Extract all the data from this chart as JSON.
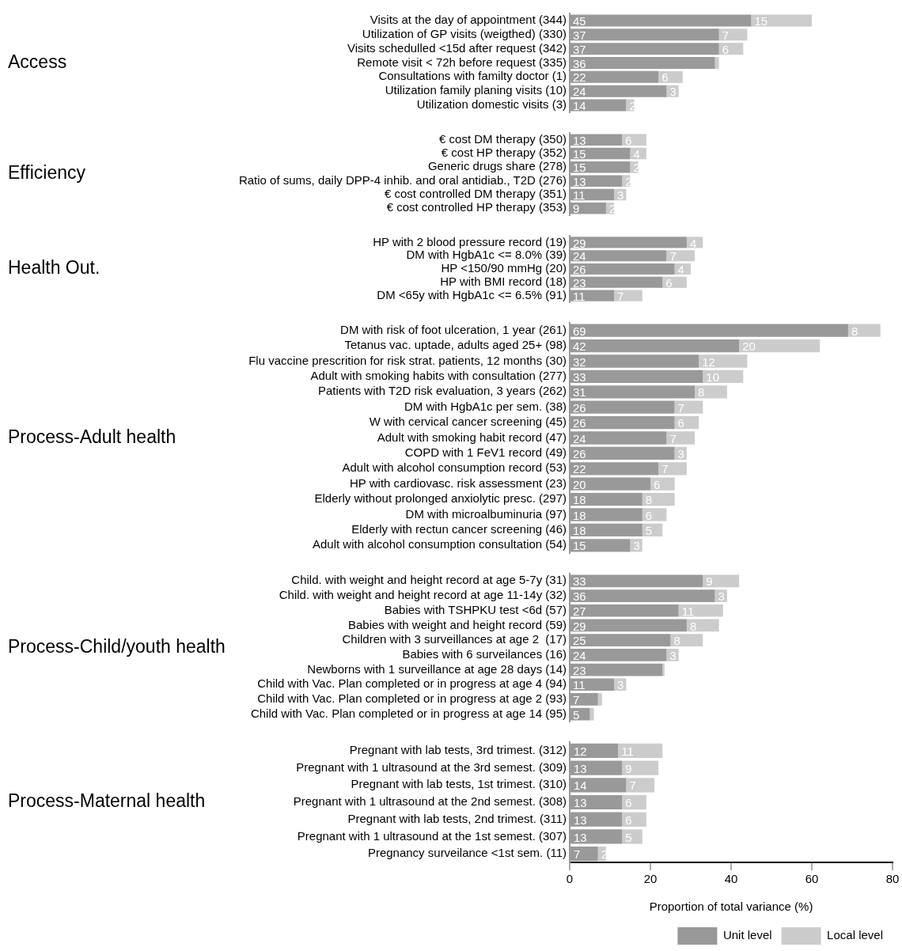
{
  "chart_data": [
    {
      "type": "bar",
      "orientation": "horizontal",
      "stacked": true,
      "ylabel": "Access",
      "xlim": [
        0,
        80
      ],
      "xticks": [
        0,
        20,
        40,
        60,
        80
      ],
      "tick_labels": "y",
      "grid": false,
      "categories": [
        "Visits at the day of appointment (344)",
        "Utilization of GP visits (weigthed) (330)",
        "Visits schedulled <15d after request (342)",
        "Remote visit < 72h before request (335)",
        "Consultations with familty doctor (1)",
        "Utilization family planing visits (10)",
        "Utilization domestic visits (3)"
      ],
      "series": [
        {
          "color": "#999999",
          "values": [
            45,
            37,
            37,
            36,
            22,
            24,
            14
          ],
          "value_labels": [
            "45",
            "37",
            "37",
            "36",
            "22",
            "24",
            "14"
          ]
        },
        {
          "color": "#cccccc",
          "values": [
            15,
            7,
            6,
            1,
            6,
            3,
            2
          ],
          "value_labels": [
            "15",
            "7",
            "6",
            null,
            "6",
            "3",
            "2"
          ]
        }
      ]
    },
    {
      "type": "bar",
      "orientation": "horizontal",
      "stacked": true,
      "ylabel": "Efficiency",
      "xlim": [
        0,
        80
      ],
      "xticks": [
        0,
        20,
        40,
        60,
        80
      ],
      "tick_labels": "y",
      "grid": false,
      "categories": [
        "€ cost DM therapy (350)",
        "€ cost HP therapy (352)",
        "Generic drugs share (278)",
        "Ratio of sums, daily DPP-4 inhib. and oral antidiab., T2D (276)",
        "€ cost controlled DM therapy (351)",
        "€ cost controlled HP therapy (353)"
      ],
      "series": [
        {
          "color": "#999999",
          "values": [
            13,
            15,
            15,
            13,
            11,
            9
          ],
          "value_labels": [
            "13",
            "15",
            "15",
            "13",
            "11",
            "9"
          ]
        },
        {
          "color": "#cccccc",
          "values": [
            6,
            4,
            2,
            2,
            3,
            2
          ],
          "value_labels": [
            "6",
            "4",
            "2",
            "2",
            "3",
            "2"
          ]
        }
      ]
    },
    {
      "type": "bar",
      "orientation": "horizontal",
      "stacked": true,
      "ylabel": "Health Out.",
      "xlim": [
        0,
        80
      ],
      "xticks": [
        0,
        20,
        40,
        60,
        80
      ],
      "tick_labels": "y",
      "grid": false,
      "categories": [
        "HP with 2 blood pressure record (19)",
        "DM with HgbA1c <= 8.0% (39)",
        "HP <150/90 mmHg (20)",
        "HP with BMI record (18)",
        "DM <65y with HgbA1c <= 6.5% (91)"
      ],
      "series": [
        {
          "color": "#999999",
          "values": [
            29,
            24,
            26,
            23,
            11
          ],
          "value_labels": [
            "29",
            "24",
            "26",
            "23",
            "11"
          ]
        },
        {
          "color": "#cccccc",
          "values": [
            4,
            7,
            4,
            6,
            7
          ],
          "value_labels": [
            "4",
            "7",
            "4",
            "6",
            "7"
          ]
        }
      ]
    },
    {
      "type": "bar",
      "orientation": "horizontal",
      "stacked": true,
      "ylabel": "Process-Adult health",
      "xlim": [
        0,
        80
      ],
      "xticks": [
        0,
        20,
        40,
        60,
        80
      ],
      "tick_labels": "y",
      "grid": false,
      "categories": [
        "DM with risk of foot ulceration, 1 year (261)",
        "Tetanus vac. uptade, adults aged 25+ (98)",
        "Flu vaccine prescrition for risk strat. patients, 12 months (30)",
        "Adult with smoking habits with consultation (277)",
        "Patients with T2D risk evaluation, 3 years (262)",
        "DM with HgbA1c per sem. (38)",
        "W with cervical cancer screening (45)",
        "Adult with smoking habit record (47)",
        "COPD with 1 FeV1 record (49)",
        "Adult with alcohol consumption record (53)",
        "HP with cardiovasc. risk assessment (23)",
        "Elderly without prolonged anxiolytic presc. (297)",
        "DM with microalbuminuria (97)",
        "Elderly with rectun cancer screening (46)",
        "Adult with alcohol consumption consultation (54)"
      ],
      "series": [
        {
          "color": "#999999",
          "values": [
            69,
            42,
            32,
            33,
            31,
            26,
            26,
            24,
            26,
            22,
            20,
            18,
            18,
            18,
            15
          ],
          "value_labels": [
            "69",
            "42",
            "32",
            "33",
            "31",
            "26",
            "26",
            "24",
            "26",
            "22",
            "20",
            "18",
            "18",
            "18",
            "15"
          ]
        },
        {
          "color": "#cccccc",
          "values": [
            8,
            20,
            12,
            10,
            8,
            7,
            6,
            7,
            3,
            7,
            6,
            8,
            6,
            5,
            3
          ],
          "value_labels": [
            "8",
            "20",
            "12",
            "10",
            "8",
            "7",
            "6",
            "7",
            "3",
            "7",
            "6",
            "8",
            "6",
            "5",
            "3"
          ]
        }
      ]
    },
    {
      "type": "bar",
      "orientation": "horizontal",
      "stacked": true,
      "ylabel": "Process-Child/youth health",
      "xlim": [
        0,
        80
      ],
      "xticks": [
        0,
        20,
        40,
        60,
        80
      ],
      "tick_labels": "y",
      "grid": false,
      "categories": [
        "Child. with weight and height record at age 5-7y (31)",
        "Child. with weight and height record at age 11-14y (32)",
        "Babies with TSHPKU test <6d (57)",
        "Babies with weight and height record (59)",
        "Children with 3 surveillances at age 2  (17)",
        "Babies with 6 surveilances (16)",
        "Newborns with 1 surveillance at age 28 days (14)",
        "Child with Vac. Plan completed or in progress at age 4 (94)",
        "Child with Vac. Plan completed or in progress at age 2 (93)",
        "Child with Vac. Plan completed or in progress at age 14 (95)"
      ],
      "series": [
        {
          "color": "#999999",
          "values": [
            33,
            36,
            27,
            29,
            25,
            24,
            23,
            11,
            7,
            5
          ],
          "value_labels": [
            "33",
            "36",
            "27",
            "29",
            "25",
            "24",
            "23",
            "11",
            "7",
            "5"
          ]
        },
        {
          "color": "#cccccc",
          "values": [
            9,
            3,
            11,
            8,
            8,
            3,
            0.5,
            3,
            1,
            1
          ],
          "value_labels": [
            "9",
            "3",
            "11",
            "8",
            "8",
            "3",
            null,
            "3",
            null,
            null
          ]
        }
      ]
    },
    {
      "type": "bar",
      "orientation": "horizontal",
      "stacked": true,
      "ylabel": "Process-Maternal health",
      "xlabel": "Proportion of total variance (%)",
      "xlim": [
        0,
        80
      ],
      "xticks": [
        0,
        20,
        40,
        60,
        80
      ],
      "grid": false,
      "legend": "bottom",
      "categories": [
        "Pregnant with lab tests, 3rd trimest. (312)",
        "Pregnant with 1 ultrasound at the 3rd semest. (309)",
        "Pregnant with lab tests, 1st trimest. (310)",
        "Pregnant with 1 ultrasound at the 2nd semest. (308)",
        "Pregnant with lab tests, 2nd trimest. (311)",
        "Pregnant with 1 ultrasound at the 1st semest. (307)",
        "Pregnancy surveilance <1st sem. (11)"
      ],
      "series": [
        {
          "name": "Unit level",
          "color": "#999999",
          "values": [
            12,
            13,
            14,
            13,
            13,
            13,
            7
          ],
          "value_labels": [
            "12",
            "13",
            "14",
            "13",
            "13",
            "13",
            "7"
          ]
        },
        {
          "name": "Local level",
          "color": "#cccccc",
          "values": [
            11,
            9,
            7,
            6,
            6,
            5,
            2
          ],
          "value_labels": [
            "11",
            "9",
            "7",
            "6",
            "6",
            "5",
            "2"
          ]
        }
      ]
    }
  ]
}
